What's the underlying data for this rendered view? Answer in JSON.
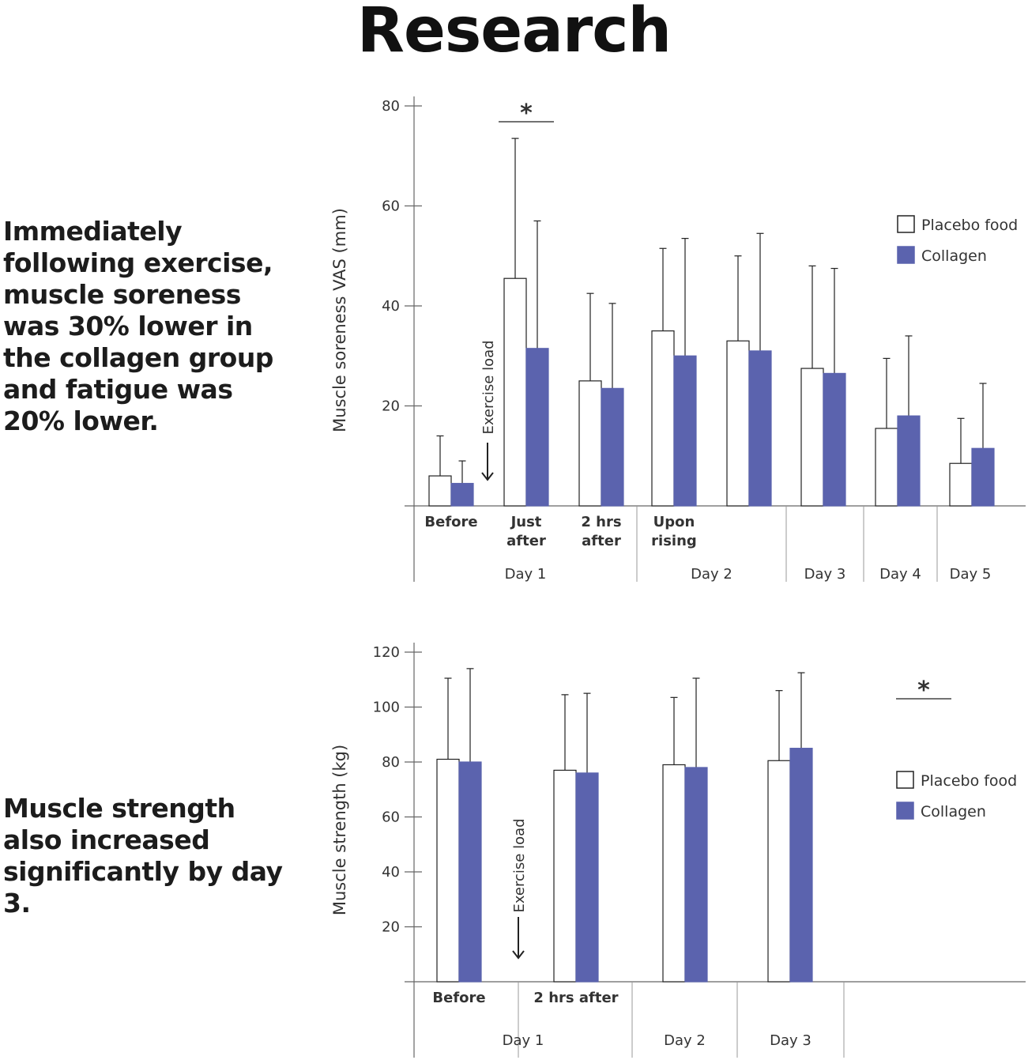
{
  "page": {
    "title": "Research",
    "blurb_1": "Immediately following exercise, muscle soreness was 30% lower in the collagen group and fatigue was 20% lower.",
    "blurb_2": "Muscle strength also increased significantly by day 3."
  },
  "colors": {
    "placebo": "#ffffff",
    "collagen": "#5b63ae",
    "axis": "#666666",
    "stroke": "#222222"
  },
  "chart_data": [
    {
      "type": "bar",
      "ylabel": "Muscle soreness VAS (mm)",
      "ylim": [
        0,
        80
      ],
      "yticks": [
        20,
        40,
        60,
        80
      ],
      "categories": [
        [
          "Before"
        ],
        [
          "Just",
          "after"
        ],
        [
          "2 hrs",
          "after"
        ],
        [
          "Upon",
          "rising"
        ],
        [],
        [],
        [],
        []
      ],
      "groups": [
        {
          "label": "Day 1",
          "from": 0,
          "to": 2
        },
        {
          "label": "Day 2",
          "from": 3,
          "to": 4
        },
        {
          "label": "Day 3",
          "from": 5,
          "to": 5
        },
        {
          "label": "Day 4",
          "from": 6,
          "to": 6
        },
        {
          "label": "Day 5",
          "from": 7,
          "to": 7
        }
      ],
      "series": [
        {
          "name": "Placebo food",
          "values": [
            6,
            45.5,
            25,
            35,
            33,
            27.5,
            15.5,
            8.5
          ],
          "errors": [
            14,
            73.5,
            42.5,
            51.5,
            50,
            48,
            29.5,
            17.5
          ]
        },
        {
          "name": "Collagen",
          "values": [
            4.5,
            31.5,
            23.5,
            30,
            31,
            26.5,
            18,
            11.5
          ],
          "errors": [
            9,
            57,
            40.5,
            53.5,
            54.5,
            47.5,
            34,
            24.5
          ]
        }
      ],
      "annotation": {
        "text": "*",
        "over": 1
      },
      "exercise_label": "Exercise load",
      "legend": [
        "Placebo food",
        "Collagen"
      ],
      "legend_position": "right"
    },
    {
      "type": "bar",
      "ylabel": "Muscle strength (kg)",
      "ylim": [
        0,
        120
      ],
      "yticks": [
        20,
        40,
        60,
        80,
        100,
        120
      ],
      "categories": [
        [
          "Before"
        ],
        [
          "2 hrs after"
        ],
        [],
        []
      ],
      "groups": [
        {
          "label": "Day 1",
          "from": 0,
          "to": 1
        },
        {
          "label": "Day 2",
          "from": 2,
          "to": 2
        },
        {
          "label": "Day 3",
          "from": 3,
          "to": 3
        }
      ],
      "series": [
        {
          "name": "Placebo food",
          "values": [
            81,
            77,
            79,
            80.5
          ],
          "errors": [
            110.5,
            104.5,
            103.5,
            106
          ]
        },
        {
          "name": "Collagen",
          "values": [
            80,
            76,
            78,
            85
          ],
          "errors": [
            114,
            105,
            110.5,
            112.5
          ]
        }
      ],
      "annotation": {
        "text": "*",
        "over": 3
      },
      "exercise_label": "Exercise load",
      "legend": [
        "Placebo food",
        "Collagen"
      ],
      "legend_position": "right"
    }
  ]
}
